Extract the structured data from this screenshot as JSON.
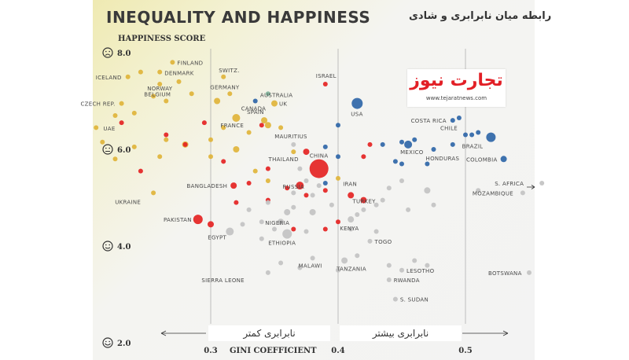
{
  "header": {
    "title": "INEQUALITY AND HAPPINESS",
    "title_fa": "رابطه میان نابرابری و شادی"
  },
  "logo": {
    "name_fa": "تجارت نیوز",
    "url": "www.tejaratnews.com"
  },
  "annotations": {
    "less_inequality_fa": "نابرابری کمتر",
    "more_inequality_fa": "نابرابری بیشتر"
  },
  "colors": {
    "yellow": "#e0b43a",
    "red": "#e42323",
    "blue": "#2f66a8",
    "grey": "#c4c4c4",
    "green": "#7fb39a"
  },
  "chart_data": {
    "type": "scatter",
    "title": "INEQUALITY AND HAPPINESS",
    "xlabel": "GINI COEFFICIENT",
    "ylabel": "HAPPINESS SCORE",
    "xlim": [
      0.18,
      0.56
    ],
    "ylim": [
      2.0,
      8.0
    ],
    "x_ticks": [
      0.3,
      0.4,
      0.5
    ],
    "y_ticks": [
      2.0,
      4.0,
      6.0,
      8.0
    ],
    "y_tick_icons": [
      "smile-icon",
      "happy-face-icon",
      "neutral-face-icon",
      "sad-face-icon"
    ],
    "x_tick_labels": [
      "0.3",
      "0.4",
      "0.5"
    ],
    "y_tick_labels": [
      "2.0",
      "4.0",
      "6.0",
      "8.0"
    ],
    "grid": false,
    "reference_lines": [
      0.3,
      0.4,
      0.5
    ],
    "labeled_points": [
      {
        "label": "FINLAND",
        "x": 0.27,
        "y": 7.8,
        "color": "yellow",
        "size": 3
      },
      {
        "label": "DENMARK",
        "x": 0.26,
        "y": 7.6,
        "color": "yellow",
        "size": 3
      },
      {
        "label": "ICELAND",
        "x": 0.235,
        "y": 7.5,
        "color": "yellow",
        "size": 3
      },
      {
        "label": "SWITZ.",
        "x": 0.31,
        "y": 7.5,
        "color": "yellow",
        "size": 3
      },
      {
        "label": "ISRAEL",
        "x": 0.39,
        "y": 7.35,
        "color": "red",
        "size": 3
      },
      {
        "label": "NORWAY",
        "x": 0.26,
        "y": 7.35,
        "color": "yellow",
        "size": 3
      },
      {
        "label": "GERMANY",
        "x": 0.315,
        "y": 7.15,
        "color": "yellow",
        "size": 3
      },
      {
        "label": "AUSTRALIA",
        "x": 0.345,
        "y": 7.15,
        "color": "green",
        "size": 3
      },
      {
        "label": "BELGIUM",
        "x": 0.265,
        "y": 7.0,
        "color": "yellow",
        "size": 3
      },
      {
        "label": "CANADA",
        "x": 0.335,
        "y": 7.0,
        "color": "blue",
        "size": 3
      },
      {
        "label": "UK",
        "x": 0.35,
        "y": 6.95,
        "color": "yellow",
        "size": 4
      },
      {
        "label": "CZECH REP.",
        "x": 0.23,
        "y": 6.95,
        "color": "yellow",
        "size": 3
      },
      {
        "label": "USA",
        "x": 0.415,
        "y": 6.95,
        "color": "blue",
        "size": 7
      },
      {
        "label": "SPAIN",
        "x": 0.342,
        "y": 6.6,
        "color": "yellow",
        "size": 4
      },
      {
        "label": "FRANCE",
        "x": 0.32,
        "y": 6.65,
        "color": "yellow",
        "size": 5
      },
      {
        "label": "UAE",
        "x": 0.23,
        "y": 6.55,
        "color": "red",
        "size": 3
      },
      {
        "label": "COSTA RICA",
        "x": 0.49,
        "y": 6.6,
        "color": "blue",
        "size": 3
      },
      {
        "label": "CHILE",
        "x": 0.5,
        "y": 6.3,
        "color": "blue",
        "size": 3
      },
      {
        "label": "BRAZIL",
        "x": 0.52,
        "y": 6.25,
        "color": "blue",
        "size": 6
      },
      {
        "label": "MAURITIUS",
        "x": 0.365,
        "y": 6.1,
        "color": "grey",
        "size": 3
      },
      {
        "label": "MEXICO",
        "x": 0.455,
        "y": 6.1,
        "color": "blue",
        "size": 5
      },
      {
        "label": "HONDURAS",
        "x": 0.475,
        "y": 6.0,
        "color": "blue",
        "size": 3
      },
      {
        "label": "COLOMBIA",
        "x": 0.53,
        "y": 5.8,
        "color": "blue",
        "size": 4
      },
      {
        "label": "THAILAND",
        "x": 0.375,
        "y": 5.95,
        "color": "red",
        "size": 4
      },
      {
        "label": "CHINA",
        "x": 0.385,
        "y": 5.6,
        "color": "red",
        "size": 12
      },
      {
        "label": "RUSSIA",
        "x": 0.37,
        "y": 5.25,
        "color": "red",
        "size": 5
      },
      {
        "label": "S. AFRICA",
        "x": 0.56,
        "y": 5.3,
        "color": "grey",
        "size": 3
      },
      {
        "label": "MOZAMBIQUE",
        "x": 0.545,
        "y": 5.1,
        "color": "grey",
        "size": 3
      },
      {
        "label": "BANGLADESH",
        "x": 0.318,
        "y": 5.25,
        "color": "red",
        "size": 4
      },
      {
        "label": "UKRAINE",
        "x": 0.255,
        "y": 5.1,
        "color": "yellow",
        "size": 3
      },
      {
        "label": "IRAN",
        "x": 0.41,
        "y": 5.05,
        "color": "red",
        "size": 4
      },
      {
        "label": "TURKEY",
        "x": 0.42,
        "y": 4.95,
        "color": "red",
        "size": 4
      },
      {
        "label": "NIGERIA",
        "x": 0.36,
        "y": 4.7,
        "color": "grey",
        "size": 4
      },
      {
        "label": "PAKISTAN",
        "x": 0.29,
        "y": 4.55,
        "color": "red",
        "size": 6
      },
      {
        "label": "KENYA",
        "x": 0.41,
        "y": 4.55,
        "color": "grey",
        "size": 4
      },
      {
        "label": "EGYPT",
        "x": 0.315,
        "y": 4.3,
        "color": "grey",
        "size": 5
      },
      {
        "label": "ETHIOPIA",
        "x": 0.36,
        "y": 4.25,
        "color": "grey",
        "size": 6
      },
      {
        "label": "TOGO",
        "x": 0.425,
        "y": 4.1,
        "color": "grey",
        "size": 3
      },
      {
        "label": "MALAWI",
        "x": 0.38,
        "y": 3.75,
        "color": "grey",
        "size": 3
      },
      {
        "label": "TANZANIA",
        "x": 0.405,
        "y": 3.7,
        "color": "grey",
        "size": 4
      },
      {
        "label": "SIERRA LEONE",
        "x": 0.345,
        "y": 3.45,
        "color": "grey",
        "size": 3
      },
      {
        "label": "LESOTHO",
        "x": 0.45,
        "y": 3.5,
        "color": "grey",
        "size": 3
      },
      {
        "label": "BOTSWANA",
        "x": 0.55,
        "y": 3.45,
        "color": "grey",
        "size": 3
      },
      {
        "label": "RWANDA",
        "x": 0.44,
        "y": 3.3,
        "color": "grey",
        "size": 3
      },
      {
        "label": "S. SUDAN",
        "x": 0.445,
        "y": 2.9,
        "color": "grey",
        "size": 3
      }
    ],
    "other_points": [
      {
        "x": 0.245,
        "y": 7.6,
        "color": "yellow",
        "size": 3
      },
      {
        "x": 0.275,
        "y": 7.4,
        "color": "yellow",
        "size": 3
      },
      {
        "x": 0.285,
        "y": 7.15,
        "color": "yellow",
        "size": 3
      },
      {
        "x": 0.255,
        "y": 7.1,
        "color": "yellow",
        "size": 3
      },
      {
        "x": 0.305,
        "y": 7.0,
        "color": "yellow",
        "size": 4
      },
      {
        "x": 0.24,
        "y": 6.75,
        "color": "yellow",
        "size": 3
      },
      {
        "x": 0.225,
        "y": 6.7,
        "color": "yellow",
        "size": 3
      },
      {
        "x": 0.21,
        "y": 6.45,
        "color": "yellow",
        "size": 3
      },
      {
        "x": 0.215,
        "y": 6.15,
        "color": "yellow",
        "size": 3
      },
      {
        "x": 0.24,
        "y": 6.05,
        "color": "yellow",
        "size": 3
      },
      {
        "x": 0.265,
        "y": 6.2,
        "color": "yellow",
        "size": 3
      },
      {
        "x": 0.28,
        "y": 6.1,
        "color": "yellow",
        "size": 4
      },
      {
        "x": 0.3,
        "y": 6.2,
        "color": "yellow",
        "size": 3
      },
      {
        "x": 0.31,
        "y": 6.45,
        "color": "yellow",
        "size": 3
      },
      {
        "x": 0.33,
        "y": 6.35,
        "color": "yellow",
        "size": 3
      },
      {
        "x": 0.345,
        "y": 6.5,
        "color": "yellow",
        "size": 4
      },
      {
        "x": 0.355,
        "y": 6.45,
        "color": "yellow",
        "size": 3
      },
      {
        "x": 0.32,
        "y": 6.0,
        "color": "yellow",
        "size": 4
      },
      {
        "x": 0.3,
        "y": 5.85,
        "color": "yellow",
        "size": 3
      },
      {
        "x": 0.225,
        "y": 5.8,
        "color": "yellow",
        "size": 3
      },
      {
        "x": 0.26,
        "y": 5.85,
        "color": "yellow",
        "size": 3
      },
      {
        "x": 0.335,
        "y": 5.55,
        "color": "yellow",
        "size": 3
      },
      {
        "x": 0.345,
        "y": 5.35,
        "color": "yellow",
        "size": 3
      },
      {
        "x": 0.4,
        "y": 5.4,
        "color": "yellow",
        "size": 3
      },
      {
        "x": 0.365,
        "y": 5.95,
        "color": "yellow",
        "size": 3
      },
      {
        "x": 0.245,
        "y": 5.55,
        "color": "red",
        "size": 3
      },
      {
        "x": 0.28,
        "y": 6.1,
        "color": "red",
        "size": 3
      },
      {
        "x": 0.265,
        "y": 6.3,
        "color": "red",
        "size": 3
      },
      {
        "x": 0.295,
        "y": 6.55,
        "color": "red",
        "size": 3
      },
      {
        "x": 0.34,
        "y": 6.5,
        "color": "red",
        "size": 3
      },
      {
        "x": 0.345,
        "y": 5.6,
        "color": "red",
        "size": 3
      },
      {
        "x": 0.31,
        "y": 5.75,
        "color": "red",
        "size": 3
      },
      {
        "x": 0.33,
        "y": 5.3,
        "color": "red",
        "size": 3
      },
      {
        "x": 0.36,
        "y": 5.2,
        "color": "red",
        "size": 3
      },
      {
        "x": 0.375,
        "y": 5.05,
        "color": "red",
        "size": 3
      },
      {
        "x": 0.39,
        "y": 5.15,
        "color": "red",
        "size": 3
      },
      {
        "x": 0.42,
        "y": 5.85,
        "color": "red",
        "size": 3
      },
      {
        "x": 0.425,
        "y": 6.1,
        "color": "red",
        "size": 3
      },
      {
        "x": 0.365,
        "y": 4.35,
        "color": "red",
        "size": 3
      },
      {
        "x": 0.39,
        "y": 4.35,
        "color": "red",
        "size": 3
      },
      {
        "x": 0.4,
        "y": 4.5,
        "color": "red",
        "size": 3
      },
      {
        "x": 0.3,
        "y": 4.45,
        "color": "red",
        "size": 4
      },
      {
        "x": 0.32,
        "y": 4.9,
        "color": "red",
        "size": 3
      },
      {
        "x": 0.345,
        "y": 4.95,
        "color": "red",
        "size": 3
      },
      {
        "x": 0.39,
        "y": 5.3,
        "color": "blue",
        "size": 3
      },
      {
        "x": 0.39,
        "y": 6.05,
        "color": "blue",
        "size": 3
      },
      {
        "x": 0.4,
        "y": 5.85,
        "color": "blue",
        "size": 3
      },
      {
        "x": 0.4,
        "y": 6.5,
        "color": "blue",
        "size": 3
      },
      {
        "x": 0.435,
        "y": 6.1,
        "color": "blue",
        "size": 3
      },
      {
        "x": 0.445,
        "y": 5.75,
        "color": "blue",
        "size": 3
      },
      {
        "x": 0.45,
        "y": 6.15,
        "color": "blue",
        "size": 3
      },
      {
        "x": 0.46,
        "y": 6.2,
        "color": "blue",
        "size": 3
      },
      {
        "x": 0.45,
        "y": 5.7,
        "color": "blue",
        "size": 3
      },
      {
        "x": 0.47,
        "y": 5.7,
        "color": "blue",
        "size": 3
      },
      {
        "x": 0.49,
        "y": 6.1,
        "color": "blue",
        "size": 3
      },
      {
        "x": 0.495,
        "y": 6.65,
        "color": "blue",
        "size": 3
      },
      {
        "x": 0.51,
        "y": 6.35,
        "color": "blue",
        "size": 3
      },
      {
        "x": 0.505,
        "y": 6.3,
        "color": "blue",
        "size": 3
      },
      {
        "x": 0.37,
        "y": 5.6,
        "color": "grey",
        "size": 3
      },
      {
        "x": 0.375,
        "y": 5.35,
        "color": "grey",
        "size": 3
      },
      {
        "x": 0.365,
        "y": 5.1,
        "color": "grey",
        "size": 3
      },
      {
        "x": 0.38,
        "y": 5.05,
        "color": "grey",
        "size": 3
      },
      {
        "x": 0.385,
        "y": 5.25,
        "color": "grey",
        "size": 3
      },
      {
        "x": 0.395,
        "y": 4.85,
        "color": "grey",
        "size": 3
      },
      {
        "x": 0.38,
        "y": 4.7,
        "color": "grey",
        "size": 4
      },
      {
        "x": 0.365,
        "y": 4.8,
        "color": "grey",
        "size": 3
      },
      {
        "x": 0.345,
        "y": 4.9,
        "color": "grey",
        "size": 3
      },
      {
        "x": 0.34,
        "y": 4.5,
        "color": "grey",
        "size": 3
      },
      {
        "x": 0.355,
        "y": 4.5,
        "color": "grey",
        "size": 4
      },
      {
        "x": 0.325,
        "y": 4.45,
        "color": "grey",
        "size": 3
      },
      {
        "x": 0.33,
        "y": 4.75,
        "color": "grey",
        "size": 3
      },
      {
        "x": 0.34,
        "y": 4.15,
        "color": "grey",
        "size": 3
      },
      {
        "x": 0.35,
        "y": 4.35,
        "color": "grey",
        "size": 3
      },
      {
        "x": 0.375,
        "y": 4.3,
        "color": "grey",
        "size": 3
      },
      {
        "x": 0.41,
        "y": 4.35,
        "color": "grey",
        "size": 3
      },
      {
        "x": 0.415,
        "y": 4.65,
        "color": "grey",
        "size": 3
      },
      {
        "x": 0.42,
        "y": 4.75,
        "color": "grey",
        "size": 3
      },
      {
        "x": 0.43,
        "y": 4.85,
        "color": "grey",
        "size": 3
      },
      {
        "x": 0.435,
        "y": 4.95,
        "color": "grey",
        "size": 3
      },
      {
        "x": 0.44,
        "y": 5.2,
        "color": "grey",
        "size": 3
      },
      {
        "x": 0.45,
        "y": 5.35,
        "color": "grey",
        "size": 3
      },
      {
        "x": 0.47,
        "y": 5.15,
        "color": "grey",
        "size": 4
      },
      {
        "x": 0.475,
        "y": 4.85,
        "color": "grey",
        "size": 3
      },
      {
        "x": 0.455,
        "y": 4.75,
        "color": "grey",
        "size": 3
      },
      {
        "x": 0.51,
        "y": 5.15,
        "color": "grey",
        "size": 3
      },
      {
        "x": 0.415,
        "y": 3.8,
        "color": "grey",
        "size": 3
      },
      {
        "x": 0.44,
        "y": 3.6,
        "color": "grey",
        "size": 3
      },
      {
        "x": 0.46,
        "y": 3.7,
        "color": "grey",
        "size": 3
      },
      {
        "x": 0.47,
        "y": 3.6,
        "color": "grey",
        "size": 3
      },
      {
        "x": 0.355,
        "y": 3.65,
        "color": "grey",
        "size": 3
      },
      {
        "x": 0.37,
        "y": 3.55,
        "color": "grey",
        "size": 3
      },
      {
        "x": 0.4,
        "y": 3.5,
        "color": "grey",
        "size": 3
      },
      {
        "x": 0.43,
        "y": 4.3,
        "color": "grey",
        "size": 3
      }
    ]
  }
}
